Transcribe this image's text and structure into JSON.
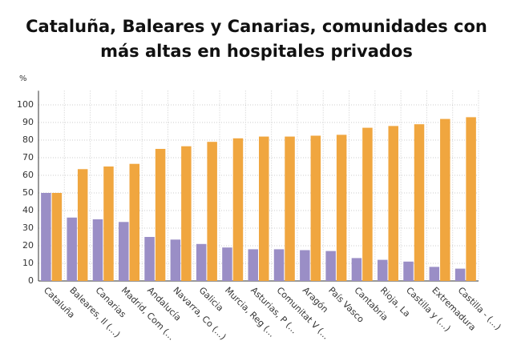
{
  "chart_data": {
    "type": "bar",
    "title": "Cataluña, Baleares y Canarias, comunidades con más altas en hospitales privados",
    "y_label": "%",
    "categories": [
      "Cataluña",
      "Baleares, Il (...)",
      "Canarias",
      "Madrid, Com (...",
      "Andalucía",
      "Navarra, Co (...)",
      "Galicia",
      "Murcia, Reg (...",
      "Asturias, P (...",
      "Comunitat V (...",
      "Aragón",
      "País Vasco",
      "Cantabria",
      "Rioja, La",
      "Castilla y (...)",
      "Extremadura",
      "Castilla - (...)"
    ],
    "series": [
      {
        "color": "#9a8ec6",
        "values": [
          50,
          36,
          35,
          33.5,
          25,
          23.5,
          21,
          19,
          18,
          18,
          17.5,
          17,
          13,
          12,
          11,
          8,
          7
        ]
      },
      {
        "color": "#f0a63f",
        "values": [
          50,
          63.5,
          65,
          66.5,
          75,
          76.5,
          79,
          81,
          82,
          82,
          82.5,
          83,
          87,
          88,
          89,
          92,
          93
        ]
      }
    ],
    "ylim": [
      0,
      108
    ],
    "yticks": [
      0,
      10,
      20,
      30,
      40,
      50,
      60,
      70,
      80,
      90,
      100
    ],
    "grid": true
  }
}
